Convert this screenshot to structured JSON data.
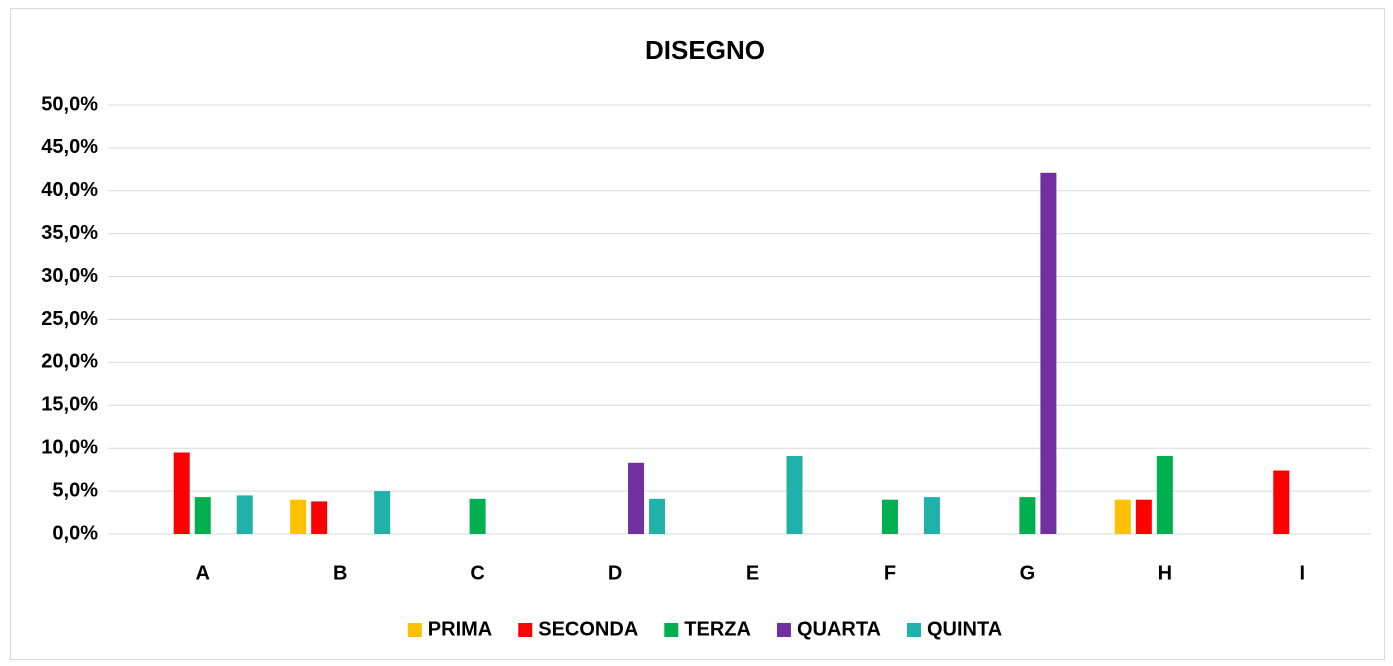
{
  "chart_data": {
    "type": "bar",
    "title": "DISEGNO",
    "categories": [
      "A",
      "B",
      "C",
      "D",
      "E",
      "F",
      "G",
      "H",
      "I"
    ],
    "series": [
      {
        "name": "PRIMA",
        "color": "#ffc000",
        "values": [
          0,
          4.0,
          0,
          0,
          0,
          0,
          0,
          4.0,
          0
        ]
      },
      {
        "name": "SECONDA",
        "color": "#ff0000",
        "values": [
          9.5,
          3.8,
          0,
          0,
          0,
          0,
          0,
          4.0,
          7.4
        ]
      },
      {
        "name": "TERZA",
        "color": "#00b050",
        "values": [
          4.3,
          0,
          4.1,
          0,
          0,
          4.0,
          4.3,
          9.1,
          0
        ]
      },
      {
        "name": "QUARTA",
        "color": "#7030a0",
        "values": [
          0,
          0,
          0,
          8.3,
          0,
          0,
          42.1,
          0,
          0
        ]
      },
      {
        "name": "QUINTA",
        "color": "#20b2aa",
        "values": [
          4.5,
          5.0,
          0,
          4.1,
          9.1,
          4.3,
          0,
          0,
          0
        ]
      }
    ],
    "ylim": [
      0,
      50
    ],
    "yticks": [
      {
        "value": 0,
        "label": "0,0%"
      },
      {
        "value": 5,
        "label": "5,0%"
      },
      {
        "value": 10,
        "label": "10,0%"
      },
      {
        "value": 15,
        "label": "15,0%"
      },
      {
        "value": 20,
        "label": "20,0%"
      },
      {
        "value": 25,
        "label": "25,0%"
      },
      {
        "value": 30,
        "label": "30,0%"
      },
      {
        "value": 35,
        "label": "35,0%"
      },
      {
        "value": 40,
        "label": "40,0%"
      },
      {
        "value": 45,
        "label": "45,0%"
      },
      {
        "value": 50,
        "label": "50,0%"
      }
    ],
    "grid": true,
    "legend": "bottom"
  }
}
